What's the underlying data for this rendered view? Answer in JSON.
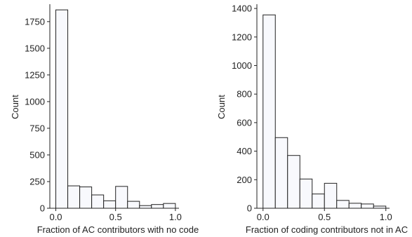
{
  "chart_data": [
    {
      "type": "bar",
      "title": "",
      "xlabel": "Fraction of AC contributors with no code",
      "ylabel": "Count",
      "xlim": [
        -0.05,
        1.03
      ],
      "ylim": [
        0,
        1900
      ],
      "xticks": [
        0.0,
        0.5,
        1.0
      ],
      "xtick_labels": [
        "0.0",
        "0.5",
        "1.0"
      ],
      "yticks": [
        0,
        250,
        500,
        750,
        1000,
        1250,
        1500,
        1750
      ],
      "ytick_labels": [
        "0",
        "250",
        "500",
        "750",
        "1000",
        "1250",
        "1500",
        "1750"
      ],
      "bin_edges": [
        0.0,
        0.1,
        0.2,
        0.3,
        0.4,
        0.5,
        0.6,
        0.7,
        0.8,
        0.9,
        1.0
      ],
      "values": [
        1860,
        210,
        200,
        125,
        70,
        205,
        65,
        25,
        35,
        45
      ],
      "bar_fill": "#f8f9fd",
      "bar_stroke": "#222222"
    },
    {
      "type": "bar",
      "title": "",
      "xlabel": "Fraction of coding contributors not in AC",
      "ylabel": "Count",
      "xlim": [
        -0.05,
        1.03
      ],
      "ylim": [
        0,
        1420
      ],
      "xticks": [
        0.0,
        0.5,
        1.0
      ],
      "xtick_labels": [
        "0.0",
        "0.5",
        "1.0"
      ],
      "yticks": [
        0,
        200,
        400,
        600,
        800,
        1000,
        1200,
        1400
      ],
      "ytick_labels": [
        "0",
        "200",
        "400",
        "600",
        "800",
        "1000",
        "1200",
        "1400"
      ],
      "bin_edges": [
        0.0,
        0.1,
        0.2,
        0.3,
        0.4,
        0.5,
        0.6,
        0.7,
        0.8,
        0.9,
        1.0
      ],
      "values": [
        1355,
        495,
        370,
        205,
        100,
        175,
        55,
        35,
        30,
        15
      ],
      "bar_fill": "#f8f9fd",
      "bar_stroke": "#222222"
    }
  ]
}
